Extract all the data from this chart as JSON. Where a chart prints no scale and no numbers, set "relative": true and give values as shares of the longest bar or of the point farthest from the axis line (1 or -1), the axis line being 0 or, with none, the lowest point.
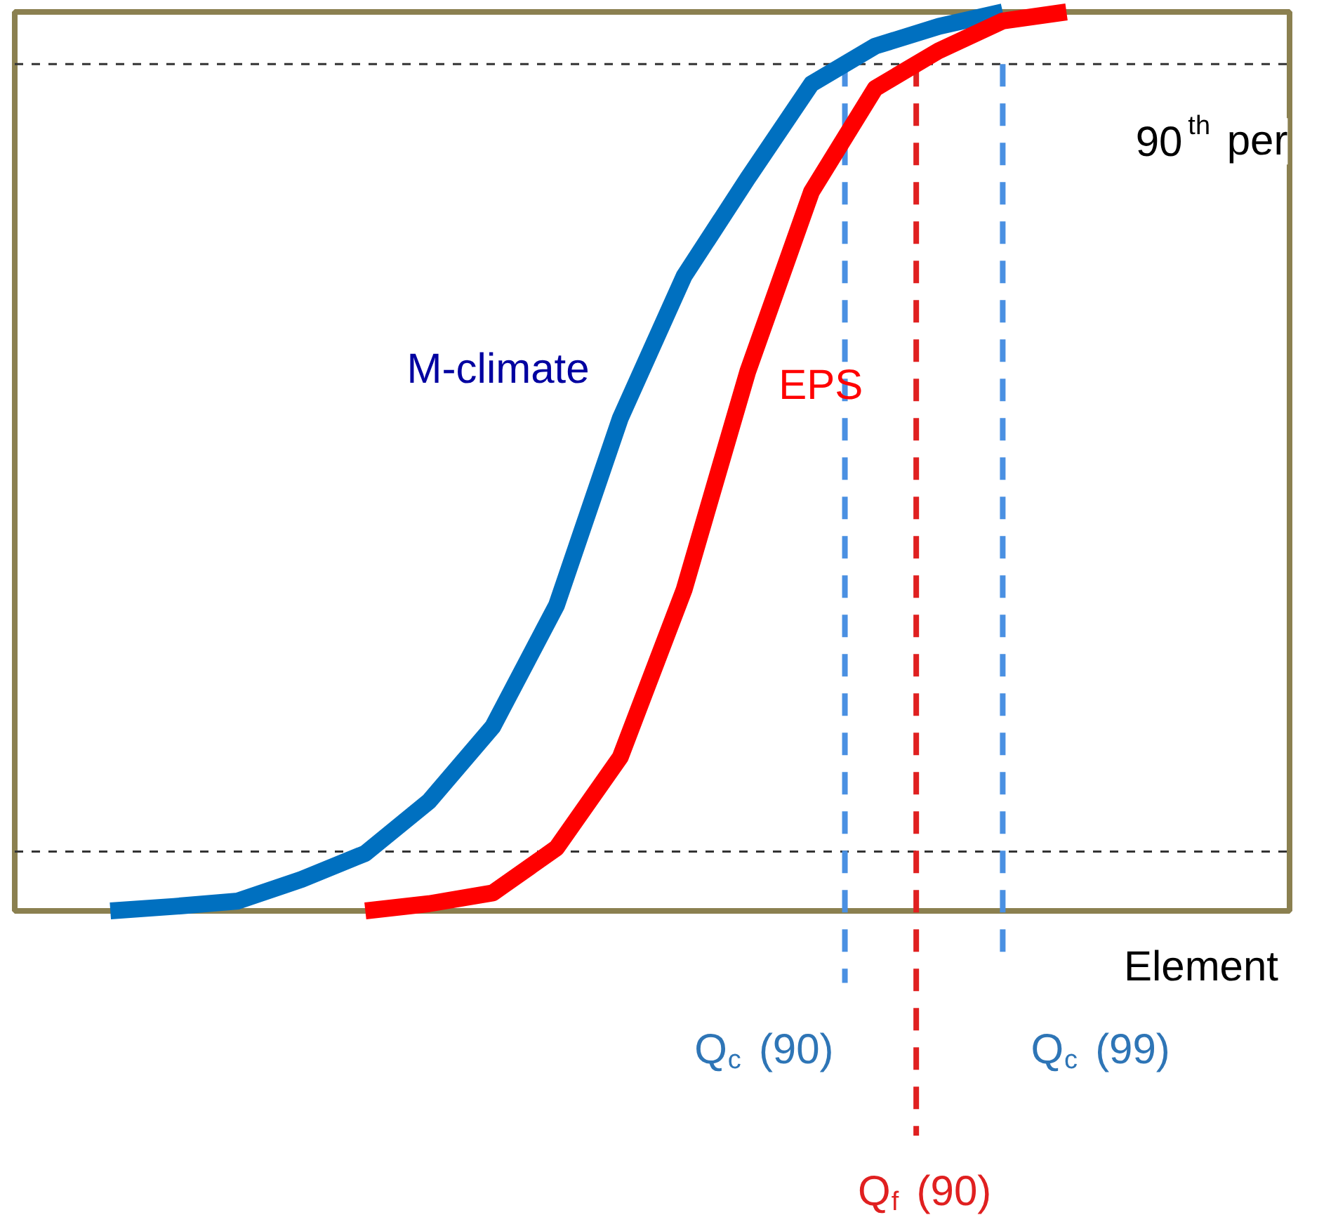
{
  "chart_data": {
    "type": "line",
    "relative": true,
    "xlabel": "Element",
    "grid": false,
    "marker": "none",
    "line_style": "solid",
    "categories": [
      null,
      null,
      null,
      null,
      null,
      null,
      null,
      null,
      null,
      null,
      null,
      null,
      null,
      null,
      null,
      null,
      null,
      null,
      null,
      null
    ],
    "series": [
      {
        "name": "M-climate",
        "color": "#0070c0",
        "values": [
          null,
          0.0,
          0.005,
          0.011,
          0.035,
          0.064,
          0.122,
          0.205,
          0.34,
          0.548,
          0.706,
          0.815,
          0.92,
          0.962,
          0.984,
          1.0,
          null,
          null,
          null,
          null
        ]
      },
      {
        "name": "EPS",
        "color": "#ff0000",
        "values": [
          null,
          null,
          null,
          null,
          null,
          0.0,
          0.008,
          0.02,
          0.07,
          0.171,
          0.357,
          0.6,
          0.8,
          0.915,
          0.957,
          0.99,
          1.0,
          null,
          null,
          null
        ]
      }
    ],
    "annotations": [
      "Q$_{c}$ (90)",
      "Q$_{f}$ (90)",
      "Q$_{c}$ (99)"
    ],
    "ref_lines": [
      {
        "axis": "y",
        "value": 0.942,
        "label": "90$^{th}$ per",
        "color": "#333333",
        "line_style": "dashed"
      },
      {
        "axis": "y",
        "value": 0.066,
        "label": null,
        "color": "#333333",
        "line_style": "dashed"
      }
    ]
  }
}
